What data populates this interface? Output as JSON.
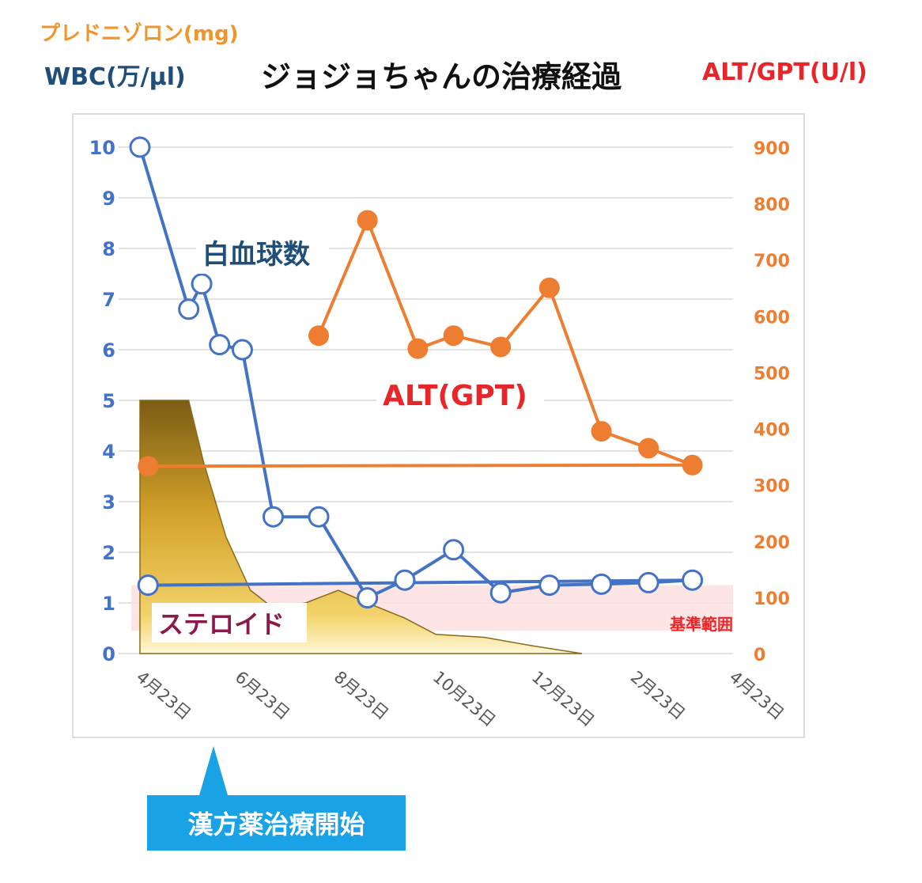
{
  "header": {
    "prednisolone_label": "プレドニゾロン(mg)",
    "wbc_label": "WBC(万/μl)",
    "title": "ジョジョちゃんの治療経過",
    "alt_label": "ALT/GPT(U/l)"
  },
  "callout": {
    "text": "漢方薬治療開始"
  },
  "colors": {
    "wbc": "#4472c4",
    "alt": "#ed7d31",
    "steroid_dark": "#7a5c14",
    "steroid_mid": "#d4a22a",
    "reference_band": "#fde0e0",
    "callout": "#1aa2e6"
  },
  "chart_data": {
    "type": "line",
    "title": "ジョジョちゃんの治療経過",
    "x_axis": {
      "type": "date",
      "ticks": [
        "4月23日",
        "6月23日",
        "8月23日",
        "10月23日",
        "12月23日",
        "2月23日",
        "4月23日"
      ],
      "range": [
        "4月23日",
        "4月23日（翌年）"
      ]
    },
    "y_left": {
      "label": "WBC(万/μl)",
      "range": [
        0,
        10
      ],
      "ticks": [
        "0",
        "1",
        "2",
        "3",
        "4",
        "5",
        "6",
        "7",
        "8",
        "9",
        "10"
      ]
    },
    "y_right": {
      "label": "ALT/GPT(U/l)",
      "range": [
        0,
        900
      ],
      "ticks": [
        "0",
        "100",
        "200",
        "300",
        "400",
        "500",
        "600",
        "700",
        "800",
        "900"
      ]
    },
    "grid": true,
    "series": [
      {
        "name": "白血球数",
        "axis": "left",
        "marker": "open-circle",
        "points": [
          {
            "x": "4/23",
            "y": 10.0
          },
          {
            "x": "5/23",
            "y": 6.8
          },
          {
            "x": "5/31",
            "y": 7.3
          },
          {
            "x": "6/11",
            "y": 6.1
          },
          {
            "x": "6/25",
            "y": 6.0
          },
          {
            "x": "7/14",
            "y": 2.7
          },
          {
            "x": "8/11",
            "y": 2.7
          },
          {
            "x": "9/10",
            "y": 1.1
          },
          {
            "x": "10/3",
            "y": 1.45
          },
          {
            "x": "11/2",
            "y": 2.05
          },
          {
            "x": "12/1",
            "y": 1.2
          },
          {
            "x": "12/31",
            "y": 1.35
          },
          {
            "x": "2/1",
            "y": 1.37
          },
          {
            "x": "3/2",
            "y": 1.4
          },
          {
            "x": "3/29",
            "y": 1.45
          },
          {
            "x": "4/28",
            "y": 1.35
          }
        ]
      },
      {
        "name": "ALT(GPT)",
        "axis": "right",
        "marker": "filled-circle",
        "points": [
          {
            "x": "8/11",
            "y": 565
          },
          {
            "x": "9/10",
            "y": 770
          },
          {
            "x": "10/11",
            "y": 542
          },
          {
            "x": "11/2",
            "y": 565
          },
          {
            "x": "12/1",
            "y": 545
          },
          {
            "x": "12/31",
            "y": 650
          },
          {
            "x": "2/1",
            "y": 395
          },
          {
            "x": "3/2",
            "y": 365
          },
          {
            "x": "3/29",
            "y": 335
          },
          {
            "x": "4/28",
            "y": 333
          }
        ]
      },
      {
        "name": "ステロイド",
        "axis": "left",
        "type": "area",
        "points": [
          {
            "x": "4/23",
            "y": 5.0
          },
          {
            "x": "5/23",
            "y": 5.0
          },
          {
            "x": "6/1",
            "y": 3.8
          },
          {
            "x": "6/15",
            "y": 2.3
          },
          {
            "x": "6/30",
            "y": 1.25
          },
          {
            "x": "7/14",
            "y": 0.9
          },
          {
            "x": "8/3",
            "y": 1.0
          },
          {
            "x": "8/23",
            "y": 1.25
          },
          {
            "x": "9/10",
            "y": 1.0
          },
          {
            "x": "10/3",
            "y": 0.7
          },
          {
            "x": "10/22",
            "y": 0.38
          },
          {
            "x": "11/21",
            "y": 0.32
          },
          {
            "x": "12/21",
            "y": 0.15
          },
          {
            "x": "1/20",
            "y": 0.0
          }
        ]
      }
    ],
    "reference_band": {
      "label": "基準範囲",
      "axis": "left",
      "range": [
        0.45,
        1.35
      ]
    }
  }
}
